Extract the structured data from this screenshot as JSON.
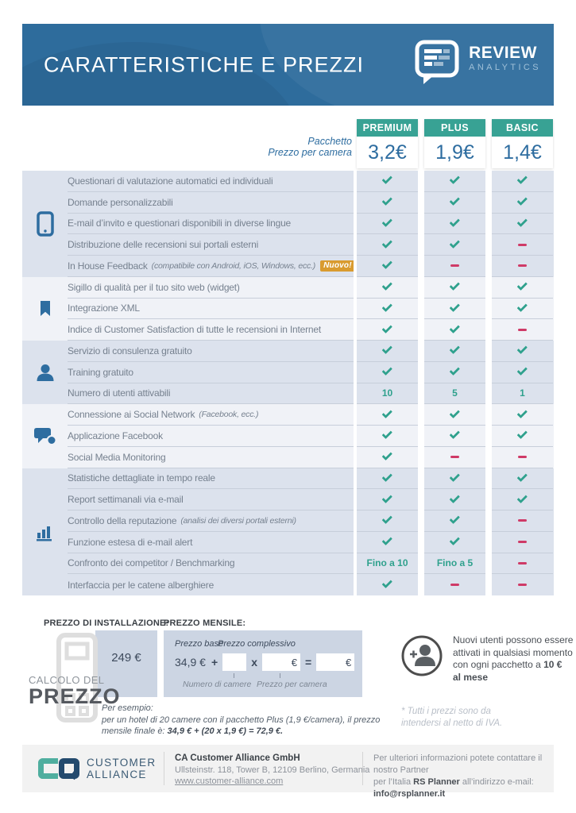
{
  "header": {
    "title": "CARATTERISTICHE E PREZZI",
    "brand": {
      "name": "REVIEW",
      "sub": "ANALYTICS"
    }
  },
  "pricing": {
    "label_line1": "Pacchetto",
    "label_line2": "Prezzo per camera",
    "plans": [
      {
        "name": "PREMIUM",
        "price": "3,2€"
      },
      {
        "name": "PLUS",
        "price": "1,9€"
      },
      {
        "name": "BASIC",
        "price": "1,4€"
      }
    ]
  },
  "table": {
    "groups": [
      {
        "icon": "smartphone-icon",
        "rows": [
          {
            "label": "Questionari di valutazione automatici ed individuali",
            "values": [
              "check",
              "check",
              "check"
            ]
          },
          {
            "label": "Domande personalizzabili",
            "values": [
              "check",
              "check",
              "check"
            ]
          },
          {
            "label": "E-mail d’invito e questionari disponibili in diverse lingue",
            "values": [
              "check",
              "check",
              "check"
            ]
          },
          {
            "label": "Distribuzione delle recensioni sui portali esterni",
            "values": [
              "check",
              "check",
              "dash"
            ]
          },
          {
            "label": "In House Feedback",
            "note": "(compatibile con Android, iOS, Windows, ecc.)",
            "badge": "Nuovo!",
            "values": [
              "check",
              "dash",
              "dash"
            ]
          }
        ]
      },
      {
        "icon": "bookmark-icon",
        "rows": [
          {
            "label": "Sigillo di qualità per il tuo sito web (widget)",
            "values": [
              "check",
              "check",
              "check"
            ]
          },
          {
            "label": "Integrazione XML",
            "values": [
              "check",
              "check",
              "check"
            ]
          },
          {
            "label": "Indice di Customer Satisfaction di tutte le recensioni in Internet",
            "values": [
              "check",
              "check",
              "dash"
            ]
          }
        ]
      },
      {
        "icon": "person-icon",
        "rows": [
          {
            "label": "Servizio di consulenza gratuito",
            "values": [
              "check",
              "check",
              "check"
            ]
          },
          {
            "label": "Training gratuito",
            "values": [
              "check",
              "check",
              "check"
            ]
          },
          {
            "label": "Numero di utenti attivabili",
            "values": [
              "10",
              "5",
              "1"
            ]
          }
        ]
      },
      {
        "icon": "chat-bubbles-icon",
        "rows": [
          {
            "label": "Connessione ai Social Network",
            "note": "(Facebook, ecc.)",
            "values": [
              "check",
              "check",
              "check"
            ]
          },
          {
            "label": "Applicazione Facebook",
            "values": [
              "check",
              "check",
              "check"
            ]
          },
          {
            "label": "Social Media Monitoring",
            "values": [
              "check",
              "dash",
              "dash"
            ]
          }
        ]
      },
      {
        "icon": "bar-chart-icon",
        "rows": [
          {
            "label": "Statistiche dettagliate in tempo reale",
            "values": [
              "check",
              "check",
              "check"
            ]
          },
          {
            "label": "Report settimanali via e-mail",
            "values": [
              "check",
              "check",
              "check"
            ]
          },
          {
            "label": "Controllo della reputazione",
            "note": "(analisi dei diversi portali esterni)",
            "values": [
              "check",
              "check",
              "dash"
            ]
          },
          {
            "label": "Funzione estesa di e-mail alert",
            "values": [
              "check",
              "check",
              "dash"
            ]
          },
          {
            "label": "Confronto dei competitor / Benchmarking",
            "values": [
              "Fino a 10",
              "Fino a 5",
              "dash"
            ]
          },
          {
            "label": "Interfaccia per le catene alberghiere",
            "values": [
              "check",
              "dash",
              "dash"
            ]
          }
        ]
      }
    ]
  },
  "calc": {
    "installation_label": "PREZZO DI INSTALLAZIONE:",
    "installation_price": "249 €",
    "monthly_label": "PREZZO MENSILE:",
    "base_label": "Prezzo base",
    "total_label": "Prezzo complessivo",
    "base_price": "34,9 €",
    "plus_sign": "+",
    "times_sign": "x",
    "equals_sign": "=",
    "euro_sign": "€",
    "rooms_label": "Numero di camere",
    "per_room_label": "Prezzo per camera",
    "title_line1": "CALCOLO DEL",
    "title_line2": "PREZZO",
    "example_intro": "Per esempio:",
    "example_line1": "per un hotel di 20 camere con il pacchetto Plus (1,9 €/camera), il prezzo",
    "example_line2_prefix": "mensile finale è: ",
    "example_line2_bold": "34,9 € + (20 x 1,9 €) = 72,9 €."
  },
  "new_users": {
    "line1": "Nuovi utenti possono essere",
    "line2": "attivati in qualsiasi momento",
    "line3_prefix": "con ogni pacchetto a ",
    "line3_bold": "10 €",
    "line4_bold": "al mese"
  },
  "vat_note": {
    "line1": "* Tutti i prezzi sono da",
    "line2": "intendersi al netto di IVA."
  },
  "footer": {
    "brand_line1": "CUSTOMER",
    "brand_line2": "ALLIANCE",
    "company_name": "CA Customer Alliance GmbH",
    "address": "Ullsteinstr. 118, Tower B, 12109 Berlino, Germania",
    "website": "www.customer-alliance.com",
    "contact_line1": "Per ulteriori informazioni potete contattare il nostro Partner",
    "contact_line2_prefix": "per l’Italia ",
    "contact_partner": "RS Planner",
    "contact_line2_suffix": " all’indirizzo e-mail:",
    "email": "info@rsplanner.it"
  },
  "icons": {
    "smartphone-icon": "css-svg-outline-phone",
    "bookmark-icon": "svg-filled-bookmark",
    "person-icon": "svg-person-silhouette",
    "chat-bubbles-icon": "svg-two-speech-bubbles",
    "bar-chart-icon": "svg-vertical-bars",
    "review-analytics-logo-icon": "svg-speech-bubble-with-lines",
    "calculator-icon": "svg-outline-calculator",
    "add-user-icon": "svg-circled-person-plus",
    "check-icon": "css-check",
    "dash-icon": "css-dash"
  },
  "colors": {
    "header_blue": "#2e6c9c",
    "teal": "#38a294",
    "price_blue": "#2e6da0",
    "check_teal": "#2fa18d",
    "dash_pink": "#cf3a67",
    "badge_orange": "#d99b2f",
    "group_dark": "#dce2ed",
    "group_light": "#f0f2f7"
  }
}
